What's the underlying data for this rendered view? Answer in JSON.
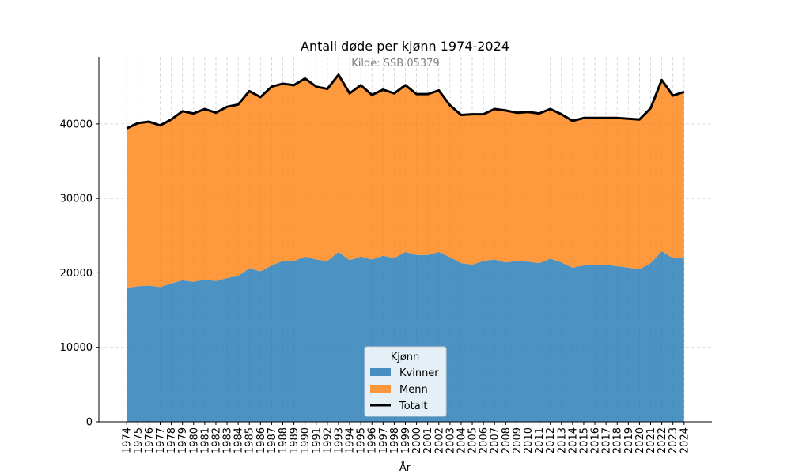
{
  "chart_data": {
    "type": "area",
    "stacked": true,
    "title": "Antall døde per kjønn 1974-2024",
    "subtitle": "Kilde: SSB 05379",
    "xlabel": "År",
    "ylabel": "",
    "ylim": [
      0,
      49000
    ],
    "yticks": [
      0,
      10000,
      20000,
      30000,
      40000
    ],
    "grid": true,
    "legend": {
      "title": "Kjønn",
      "placement": "bottom-center"
    },
    "x": [
      1974,
      1975,
      1976,
      1977,
      1978,
      1979,
      1980,
      1981,
      1982,
      1983,
      1984,
      1985,
      1986,
      1987,
      1988,
      1989,
      1990,
      1991,
      1992,
      1993,
      1994,
      1995,
      1996,
      1997,
      1998,
      1999,
      2000,
      2001,
      2002,
      2003,
      2004,
      2005,
      2006,
      2007,
      2008,
      2009,
      2010,
      2011,
      2012,
      2013,
      2014,
      2015,
      2016,
      2017,
      2018,
      2019,
      2020,
      2021,
      2022,
      2023,
      2024
    ],
    "series": [
      {
        "name": "Kvinner",
        "color": "#1f77b4",
        "values": [
          18000,
          18200,
          18300,
          18100,
          18600,
          19000,
          18800,
          19100,
          18900,
          19300,
          19600,
          20600,
          20200,
          21000,
          21600,
          21600,
          22200,
          21800,
          21600,
          22800,
          21700,
          22200,
          21800,
          22300,
          22000,
          22800,
          22400,
          22400,
          22800,
          22100,
          21300,
          21100,
          21600,
          21800,
          21400,
          21600,
          21500,
          21300,
          21900,
          21400,
          20700,
          21000,
          21000,
          21100,
          20900,
          20700,
          20500,
          21300,
          22900,
          22000,
          22100
        ]
      },
      {
        "name": "Menn",
        "color": "#ff7f0e",
        "values": [
          21400,
          21900,
          22000,
          21700,
          22000,
          22700,
          22600,
          22900,
          22600,
          23000,
          23000,
          23800,
          23400,
          24000,
          23800,
          23600,
          23900,
          23200,
          23100,
          23800,
          22400,
          23000,
          22100,
          22300,
          22100,
          22400,
          21600,
          21600,
          21700,
          20400,
          19900,
          20200,
          19700,
          20200,
          20400,
          19900,
          20100,
          20100,
          20100,
          19900,
          19700,
          19800,
          19800,
          19700,
          19900,
          20000,
          20100,
          20800,
          23000,
          21800,
          22200
        ]
      }
    ],
    "total_line": {
      "name": "Totalt",
      "color": "#000000",
      "values": [
        39400,
        40100,
        40300,
        39800,
        40600,
        41700,
        41400,
        42000,
        41500,
        42300,
        42600,
        44400,
        43600,
        45000,
        45400,
        45200,
        46100,
        45000,
        44700,
        46600,
        44100,
        45200,
        43900,
        44600,
        44100,
        45200,
        44000,
        44000,
        44500,
        42500,
        41200,
        41300,
        41300,
        42000,
        41800,
        41500,
        41600,
        41400,
        42000,
        41300,
        40400,
        40800,
        40800,
        40800,
        40800,
        40700,
        40600,
        42100,
        45900,
        43800,
        44300
      ]
    }
  }
}
